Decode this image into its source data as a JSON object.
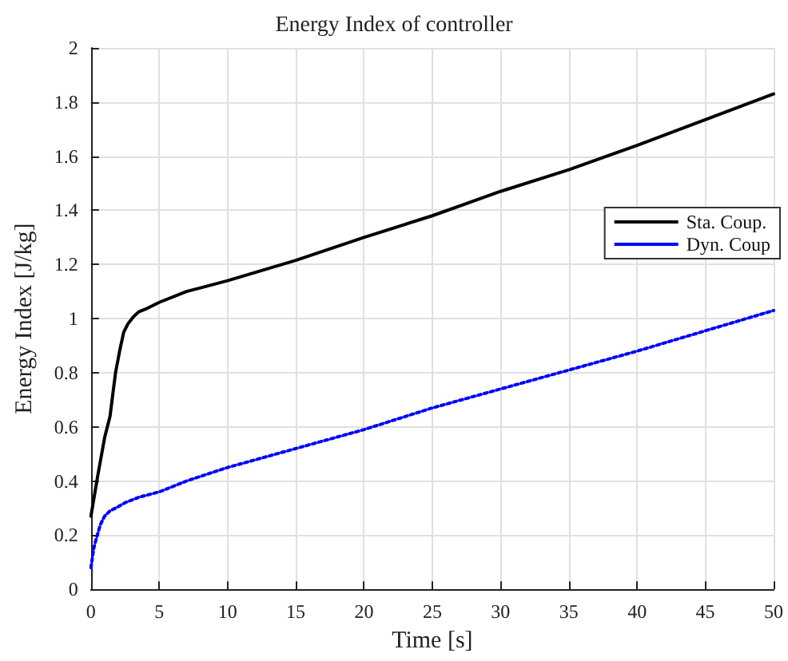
{
  "chart_data": {
    "type": "line",
    "title": "Energy Index of controller",
    "xlabel": "Time [s]",
    "ylabel": "Energy Index [J/kg]",
    "xlim": [
      0,
      50
    ],
    "xticks": [
      0,
      5,
      10,
      15,
      20,
      25,
      30,
      35,
      40,
      45,
      50
    ],
    "ylim": [
      0,
      2
    ],
    "yticks": [
      0,
      0.2,
      0.4,
      0.6,
      0.8,
      1,
      1.2,
      1.4,
      1.6,
      1.8,
      2
    ],
    "grid": true,
    "legend": "right",
    "marker": "none",
    "series": [
      {
        "name": "Sta. Coup.",
        "color": "#000000",
        "line_style": "solid",
        "x": [
          0,
          0.5,
          1,
          1.4,
          1.8,
          2.1,
          2.4,
          2.7,
          3.1,
          3.5,
          4,
          5,
          7,
          10,
          15,
          20,
          25,
          30,
          35,
          40,
          45,
          50
        ],
        "values": [
          0.27,
          0.42,
          0.56,
          0.64,
          0.8,
          0.88,
          0.95,
          0.98,
          1.006,
          1.025,
          1.035,
          1.06,
          1.1,
          1.14,
          1.215,
          1.3,
          1.38,
          1.47,
          1.55,
          1.64,
          1.735,
          1.83
        ]
      },
      {
        "name": "Dyn. Coup",
        "color": "#0000ff",
        "line_style": "dotted",
        "x": [
          0,
          0.2,
          0.4,
          0.7,
          1,
          1.4,
          1.8,
          2.5,
          3.5,
          5,
          7,
          10,
          15,
          20,
          25,
          30,
          35,
          40,
          45,
          50
        ],
        "values": [
          0.08,
          0.15,
          0.19,
          0.24,
          0.27,
          0.29,
          0.3,
          0.32,
          0.34,
          0.36,
          0.4,
          0.45,
          0.52,
          0.59,
          0.67,
          0.74,
          0.81,
          0.88,
          0.955,
          1.03
        ]
      }
    ]
  }
}
